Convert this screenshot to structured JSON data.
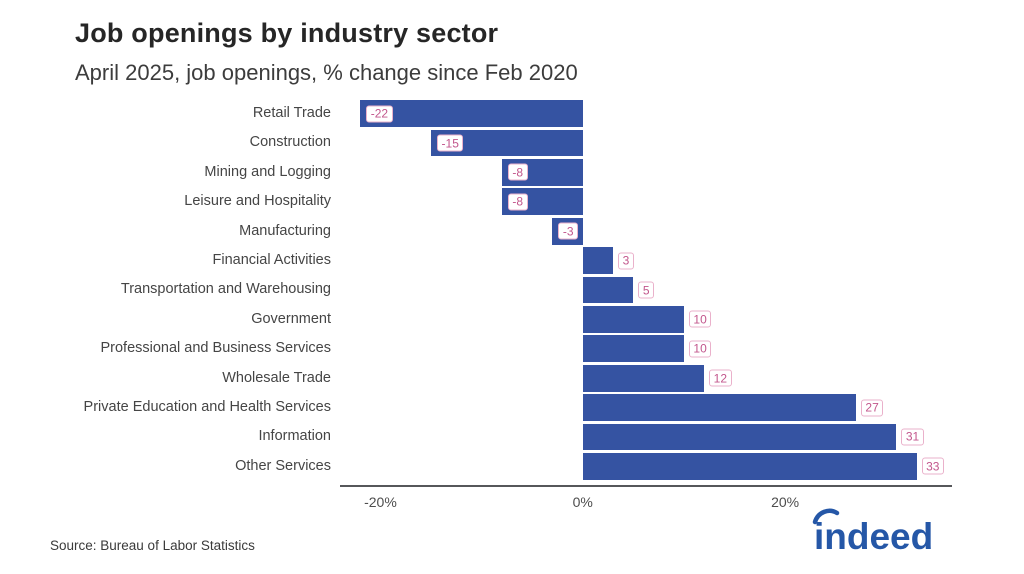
{
  "header": {
    "title": "Job openings by industry sector",
    "subtitle": "April 2025, job openings, % change since Feb 2020"
  },
  "footer": {
    "source": "Source: Bureau of Labor Statistics",
    "logo_text": "indeed"
  },
  "colors": {
    "bar": "#3553a2",
    "value_chip_text": "#c2568c",
    "value_chip_border": "#eab1cb",
    "axis_line": "#56575a",
    "logo_blue": "#2557a7"
  },
  "chart_data": {
    "type": "bar",
    "orientation": "horizontal",
    "title": "Job openings by industry sector",
    "subtitle": "April 2025, job openings, % change since Feb 2020",
    "xlabel": "",
    "ylabel": "",
    "grid": false,
    "legend": false,
    "xlim": [
      -24,
      36.5
    ],
    "categories": [
      "Retail Trade",
      "Construction",
      "Mining and Logging",
      "Leisure and Hospitality",
      "Manufacturing",
      "Financial Activities",
      "Transportation and Warehousing",
      "Government",
      "Professional and Business Services",
      "Wholesale Trade",
      "Private Education and Health Services",
      "Information",
      "Other Services"
    ],
    "values": [
      -22,
      -15,
      -8,
      -8,
      -3,
      3,
      5,
      10,
      10,
      12,
      27,
      31,
      33
    ],
    "value_labels": [
      "-22",
      "-15",
      "-8",
      "-8",
      "-3",
      "3",
      "5",
      "10",
      "10",
      "12",
      "27",
      "31",
      "33"
    ],
    "xticks": [
      {
        "value": -20,
        "label": "-20%"
      },
      {
        "value": 0,
        "label": "0%"
      },
      {
        "value": 20,
        "label": "20%"
      }
    ]
  }
}
